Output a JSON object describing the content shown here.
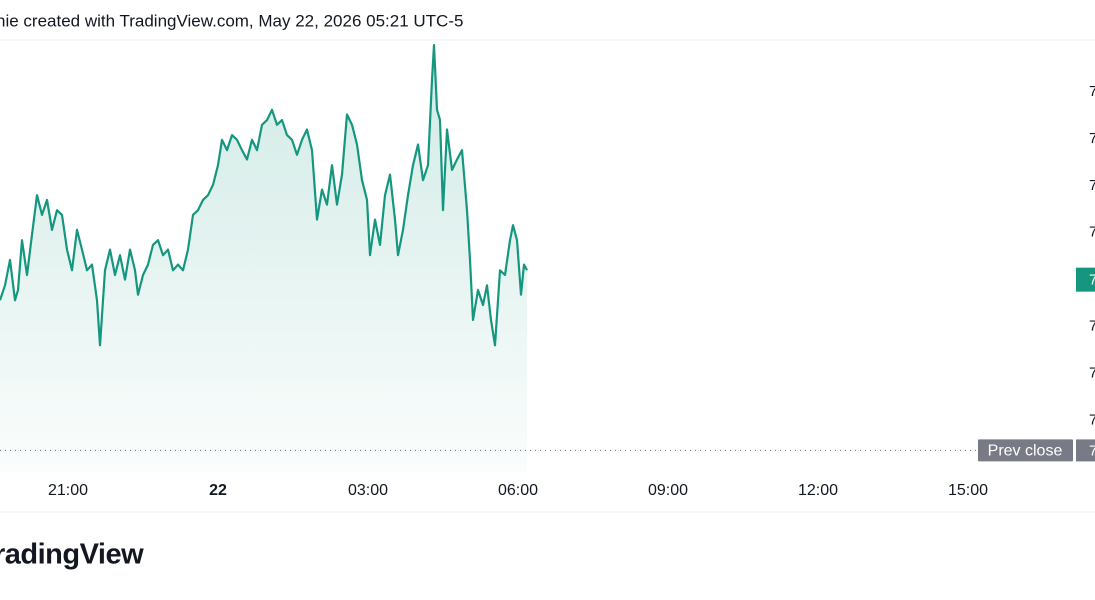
{
  "header": "nie created with TradingView.com, May 22, 2026 05:21 UTC-5",
  "footer": {
    "logo": "radingView"
  },
  "chart_data": {
    "type": "line",
    "x": [
      -4.36,
      -4.26,
      -4.16,
      -4.06,
      -4.0,
      -3.92,
      -3.82,
      -3.72,
      -3.62,
      -3.52,
      -3.42,
      -3.32,
      -3.22,
      -3.12,
      -3.02,
      -2.92,
      -2.82,
      -2.72,
      -2.62,
      -2.52,
      -2.42,
      -2.36,
      -2.26,
      -2.16,
      -2.06,
      -1.96,
      -1.86,
      -1.76,
      -1.66,
      -1.6,
      -1.5,
      -1.4,
      -1.3,
      -1.2,
      -1.1,
      -1.0,
      -0.9,
      -0.8,
      -0.7,
      -0.6,
      -0.5,
      -0.4,
      -0.3,
      -0.2,
      -0.1,
      0.0,
      0.08,
      0.18,
      0.28,
      0.38,
      0.48,
      0.58,
      0.68,
      0.78,
      0.88,
      0.98,
      1.08,
      1.18,
      1.28,
      1.38,
      1.48,
      1.58,
      1.68,
      1.78,
      1.88,
      1.98,
      2.08,
      2.18,
      2.28,
      2.38,
      2.48,
      2.58,
      2.68,
      2.78,
      2.88,
      2.98,
      3.04,
      3.14,
      3.24,
      3.34,
      3.44,
      3.54,
      3.6,
      3.7,
      3.8,
      3.9,
      4.0,
      4.1,
      4.2,
      4.28,
      4.32,
      4.38,
      4.44,
      4.5,
      4.58,
      4.68,
      4.78,
      4.88,
      4.98,
      5.04,
      5.1,
      5.2,
      5.3,
      5.38,
      5.46,
      5.54,
      5.64,
      5.74,
      5.84,
      5.9,
      5.98,
      6.06,
      6.12,
      6.18
    ],
    "series": [
      {
        "color": "#15977f",
        "values": [
          6.978,
          6.994,
          7.021,
          6.978,
          6.989,
          7.042,
          7.005,
          7.048,
          7.09,
          7.069,
          7.085,
          7.053,
          7.074,
          7.069,
          7.032,
          7.01,
          7.053,
          7.032,
          7.01,
          7.016,
          6.978,
          6.93,
          7.01,
          7.032,
          7.005,
          7.026,
          7.0,
          7.032,
          7.01,
          6.984,
          7.005,
          7.016,
          7.037,
          7.042,
          7.026,
          7.032,
          7.01,
          7.016,
          7.01,
          7.032,
          7.069,
          7.074,
          7.085,
          7.09,
          7.101,
          7.122,
          7.149,
          7.138,
          7.154,
          7.149,
          7.138,
          7.128,
          7.149,
          7.138,
          7.165,
          7.17,
          7.181,
          7.165,
          7.17,
          7.154,
          7.149,
          7.133,
          7.149,
          7.16,
          7.138,
          7.064,
          7.096,
          7.08,
          7.122,
          7.08,
          7.112,
          7.176,
          7.165,
          7.144,
          7.106,
          7.085,
          7.026,
          7.064,
          7.037,
          7.09,
          7.112,
          7.064,
          7.026,
          7.053,
          7.09,
          7.122,
          7.144,
          7.106,
          7.122,
          7.213,
          7.25,
          7.181,
          7.17,
          7.074,
          7.16,
          7.117,
          7.128,
          7.138,
          7.074,
          7.021,
          6.957,
          6.989,
          6.973,
          6.994,
          6.957,
          6.93,
          7.01,
          7.005,
          7.042,
          7.058,
          7.042,
          6.984,
          7.016,
          7.01
        ]
      }
    ],
    "xlim": [
      -4.36,
      17.14
    ],
    "xticks": [
      {
        "value": -3,
        "label": "21:00"
      },
      {
        "value": 0,
        "label": "22"
      },
      {
        "value": 3,
        "label": "03:00"
      },
      {
        "value": 6,
        "label": "06:00"
      },
      {
        "value": 9,
        "label": "09:00"
      },
      {
        "value": 12,
        "label": "12:00"
      },
      {
        "value": 15,
        "label": "15:00"
      }
    ],
    "ylim": [
      6.795,
      7.2554
    ],
    "yticks": [
      {
        "value": 6.85,
        "label": "7"
      },
      {
        "value": 6.9,
        "label": "7"
      },
      {
        "value": 6.95,
        "label": "7"
      },
      {
        "value": 7.05,
        "label": "7"
      },
      {
        "value": 7.1,
        "label": "7"
      },
      {
        "value": 7.15,
        "label": "7"
      },
      {
        "value": 7.2,
        "label": "7"
      }
    ],
    "last_price": {
      "value": 7.0,
      "label": "7",
      "color": "#15977f"
    },
    "prev_close": {
      "name": "Prev close",
      "value": 6.818,
      "label": "7"
    },
    "grid": false
  }
}
